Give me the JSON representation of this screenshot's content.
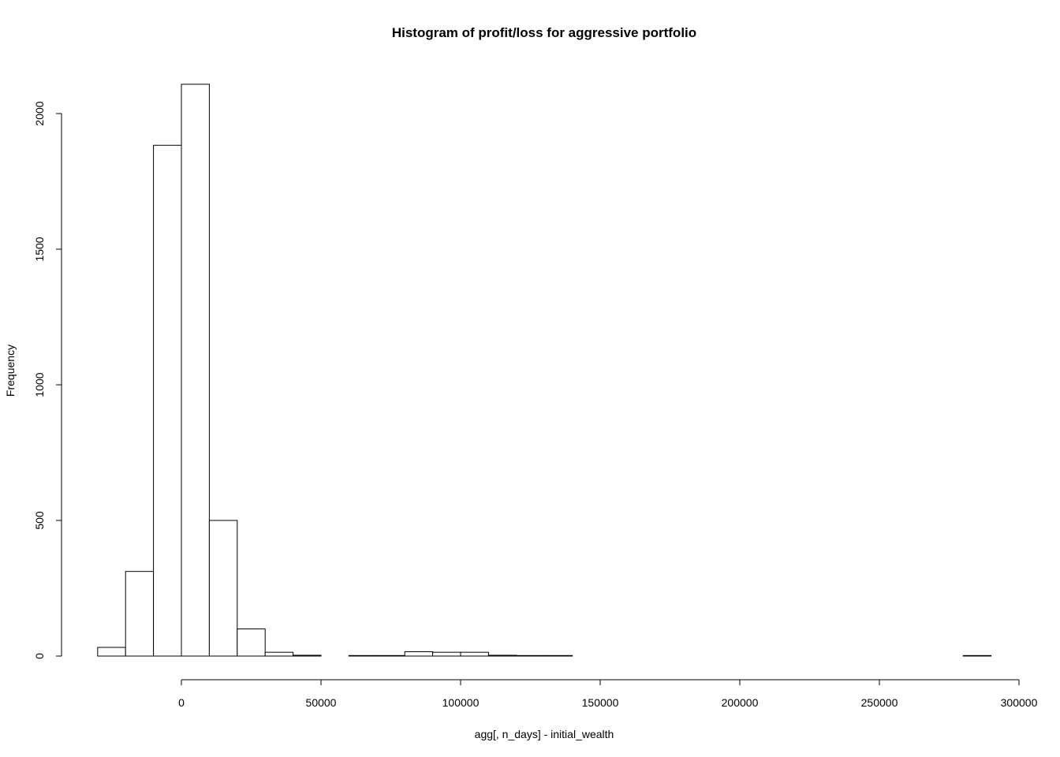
{
  "chart_data": {
    "type": "bar",
    "subtype": "histogram",
    "title": "Histogram of profit/loss for aggressive portfolio",
    "xlabel": "agg[, n_days] - initial_wealth",
    "ylabel": "Frequency",
    "xlim": [
      -30000,
      300000
    ],
    "ylim": [
      0,
      2110
    ],
    "x_ticks": [
      0,
      50000,
      100000,
      150000,
      200000,
      250000,
      300000
    ],
    "x_tick_labels": [
      "0",
      "50000",
      "100000",
      "150000",
      "200000",
      "250000",
      "300000"
    ],
    "y_ticks": [
      0,
      500,
      1000,
      1500,
      2000
    ],
    "y_tick_labels": [
      "0",
      "500",
      "1000",
      "1500",
      "2000"
    ],
    "bin_width": 10000,
    "bin_starts": [
      -30000,
      -20000,
      -10000,
      0,
      10000,
      20000,
      30000,
      40000,
      50000,
      60000,
      70000,
      80000,
      90000,
      100000,
      110000,
      120000,
      130000,
      140000,
      150000,
      160000,
      170000,
      180000,
      190000,
      200000,
      210000,
      220000,
      230000,
      240000,
      250000,
      260000,
      270000,
      280000
    ],
    "values": [
      32,
      312,
      1883,
      2108,
      500,
      100,
      14,
      3,
      0,
      2,
      2,
      16,
      14,
      14,
      3,
      2,
      2,
      0,
      0,
      0,
      0,
      0,
      0,
      0,
      0,
      0,
      0,
      0,
      0,
      0,
      0,
      2
    ],
    "grid": false,
    "colors": {
      "fill": "#ffffff",
      "stroke": "#000000"
    }
  }
}
